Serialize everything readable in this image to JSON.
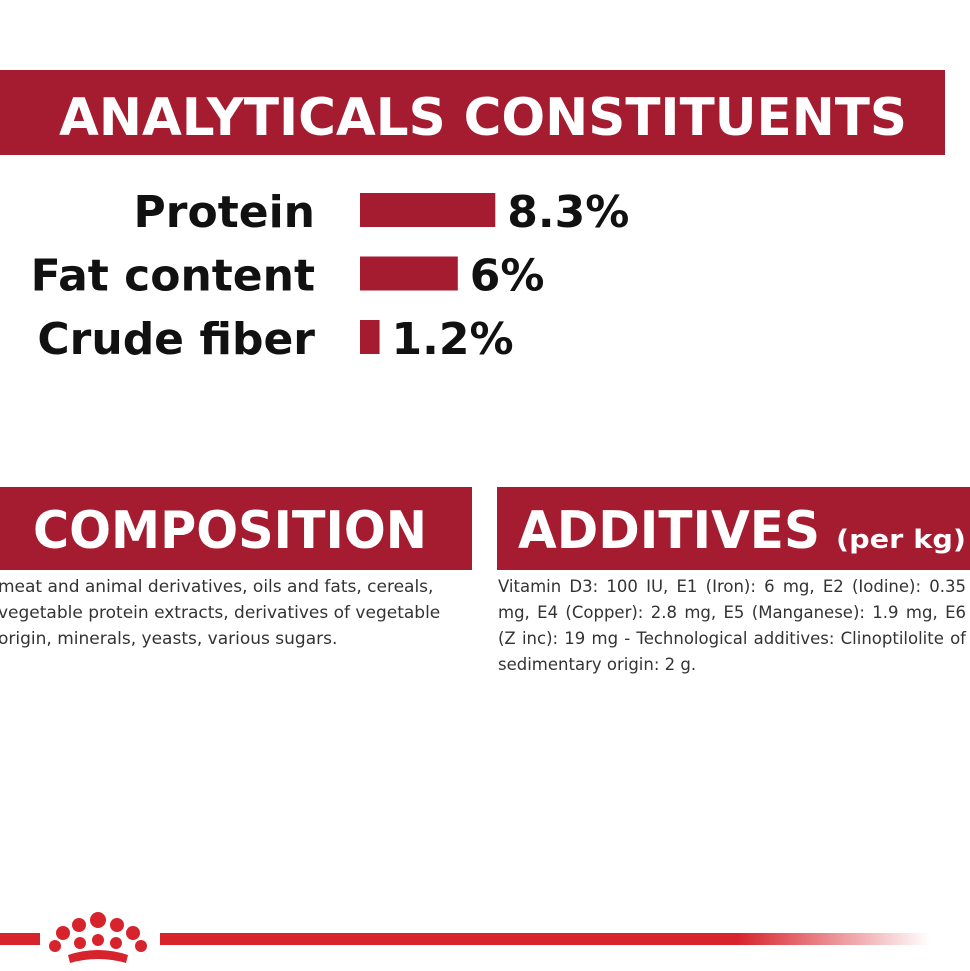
{
  "analyticals": {
    "title": "ANALYTICALS CONSTITUENTS",
    "labels": [
      "Protein",
      "Fat content",
      "Crude fiber"
    ],
    "values": [
      8.3,
      6,
      1.2
    ],
    "value_labels": [
      "8.3%",
      "6%",
      "1.2%"
    ],
    "color": "#a51c30"
  },
  "composition": {
    "title": "COMPOSITION",
    "text": "meat and animal derivatives, oils and fats, cereals, vegetable protein extracts, derivatives of vegetable origin, minerals, yeasts, various sugars."
  },
  "additives": {
    "title": "ADDITIVES",
    "subtitle": "(per kg)",
    "text": "Vitamin D3: 100 IU, E1 (Iron): 6 mg, E2 (Iodine): 0.35 mg, E4 (Copper): 2.8 mg, E5 (Manganese): 1.9 mg, E6 (Z inc): 19 mg - Technological additives: Clinoptilolite of sedimentary origin: 2 g."
  }
}
